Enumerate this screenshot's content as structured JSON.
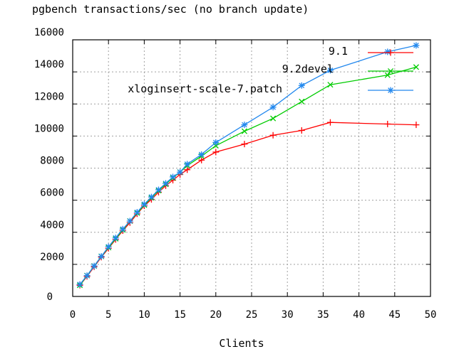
{
  "chart_data": {
    "type": "line",
    "title": "pgbench transactions/sec (no branch update)",
    "xlabel": "Clients",
    "ylabel": "",
    "xlim": [
      0,
      50
    ],
    "ylim": [
      0,
      16000
    ],
    "x_ticks": [
      0,
      5,
      10,
      15,
      20,
      25,
      30,
      35,
      40,
      45,
      50
    ],
    "y_ticks": [
      0,
      2000,
      4000,
      6000,
      8000,
      10000,
      12000,
      14000,
      16000
    ],
    "grid": true,
    "legend_position": "top-right",
    "series": [
      {
        "name": "9.1",
        "color": "#ff0000",
        "marker": "plus",
        "points": [
          [
            1,
            700
          ],
          [
            2,
            1250
          ],
          [
            3,
            1850
          ],
          [
            4,
            2450
          ],
          [
            5,
            3000
          ],
          [
            6,
            3550
          ],
          [
            7,
            4100
          ],
          [
            8,
            4600
          ],
          [
            9,
            5150
          ],
          [
            10,
            5650
          ],
          [
            11,
            6050
          ],
          [
            12,
            6500
          ],
          [
            13,
            6900
          ],
          [
            14,
            7250
          ],
          [
            15,
            7600
          ],
          [
            16,
            7900
          ],
          [
            18,
            8500
          ],
          [
            20,
            9000
          ],
          [
            24,
            9500
          ],
          [
            28,
            10050
          ],
          [
            32,
            10350
          ],
          [
            36,
            10850
          ],
          [
            44,
            10750
          ],
          [
            48,
            10700
          ]
        ]
      },
      {
        "name": "9.2devel",
        "color": "#00cc00",
        "marker": "cross",
        "points": [
          [
            1,
            700
          ],
          [
            2,
            1300
          ],
          [
            3,
            1900
          ],
          [
            4,
            2500
          ],
          [
            5,
            3050
          ],
          [
            6,
            3600
          ],
          [
            7,
            4150
          ],
          [
            8,
            4700
          ],
          [
            9,
            5200
          ],
          [
            10,
            5700
          ],
          [
            11,
            6150
          ],
          [
            12,
            6600
          ],
          [
            13,
            7000
          ],
          [
            14,
            7400
          ],
          [
            15,
            7750
          ],
          [
            16,
            8150
          ],
          [
            18,
            8750
          ],
          [
            20,
            9400
          ],
          [
            24,
            10300
          ],
          [
            28,
            11100
          ],
          [
            32,
            12150
          ],
          [
            36,
            13200
          ],
          [
            44,
            13800
          ],
          [
            48,
            14300
          ]
        ]
      },
      {
        "name": "xloginsert-scale-7.patch",
        "color": "#2288ee",
        "marker": "star",
        "points": [
          [
            1,
            750
          ],
          [
            2,
            1300
          ],
          [
            3,
            1900
          ],
          [
            4,
            2500
          ],
          [
            5,
            3100
          ],
          [
            6,
            3650
          ],
          [
            7,
            4200
          ],
          [
            8,
            4700
          ],
          [
            9,
            5250
          ],
          [
            10,
            5750
          ],
          [
            11,
            6200
          ],
          [
            12,
            6650
          ],
          [
            13,
            7050
          ],
          [
            14,
            7450
          ],
          [
            15,
            7750
          ],
          [
            16,
            8250
          ],
          [
            18,
            8850
          ],
          [
            20,
            9600
          ],
          [
            24,
            10700
          ],
          [
            28,
            11800
          ],
          [
            32,
            13150
          ],
          [
            36,
            14100
          ],
          [
            44,
            15250
          ],
          [
            48,
            15650
          ]
        ]
      }
    ]
  }
}
